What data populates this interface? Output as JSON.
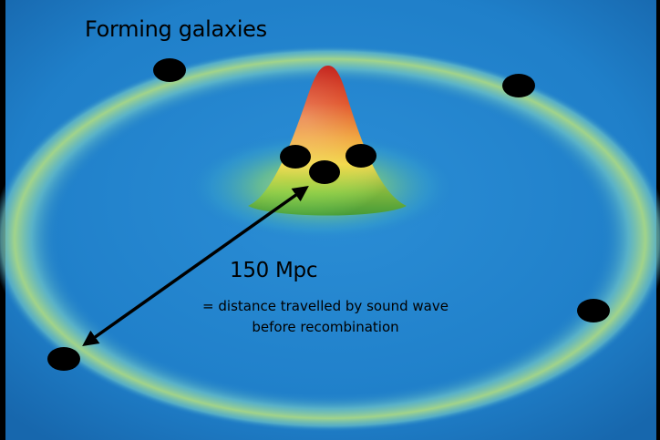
{
  "labels": {
    "title": "Forming galaxies",
    "distance": "150 Mpc",
    "description": "= distance travelled by sound wave before recombination"
  },
  "colors": {
    "background_plane": "#1f7fc9",
    "ring": "#9ed483",
    "peak_top": "#c8271b",
    "peak_mid": "#f0d24a",
    "peak_base": "#62bf3f",
    "galaxy": "#000000",
    "arrow": "#000000"
  }
}
